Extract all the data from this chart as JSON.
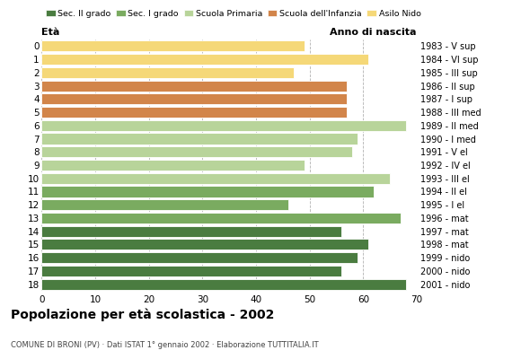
{
  "ages": [
    18,
    17,
    16,
    15,
    14,
    13,
    12,
    11,
    10,
    9,
    8,
    7,
    6,
    5,
    4,
    3,
    2,
    1,
    0
  ],
  "values": [
    68,
    56,
    59,
    61,
    56,
    67,
    46,
    62,
    65,
    49,
    58,
    59,
    68,
    57,
    57,
    57,
    47,
    61,
    49
  ],
  "right_labels": [
    "1983 - V sup",
    "1984 - VI sup",
    "1985 - III sup",
    "1986 - II sup",
    "1987 - I sup",
    "1988 - III med",
    "1989 - II med",
    "1990 - I med",
    "1991 - V el",
    "1992 - IV el",
    "1993 - III el",
    "1994 - II el",
    "1995 - I el",
    "1996 - mat",
    "1997 - mat",
    "1998 - mat",
    "1999 - nido",
    "2000 - nido",
    "2001 - nido"
  ],
  "colors": [
    "#4a7c40",
    "#4a7c40",
    "#4a7c40",
    "#4a7c40",
    "#4a7c40",
    "#7aab60",
    "#7aab60",
    "#7aab60",
    "#b8d49a",
    "#b8d49a",
    "#b8d49a",
    "#b8d49a",
    "#b8d49a",
    "#d2854a",
    "#d2854a",
    "#d2854a",
    "#f5d878",
    "#f5d878",
    "#f5d878"
  ],
  "legend_labels": [
    "Sec. II grado",
    "Sec. I grado",
    "Scuola Primaria",
    "Scuola dell'Infanzia",
    "Asilo Nido"
  ],
  "legend_colors": [
    "#4a7c40",
    "#7aab60",
    "#b8d49a",
    "#d2854a",
    "#f5d878"
  ],
  "title": "Popolazione per età scolastica - 2002",
  "subtitle": "COMUNE DI BRONI (PV) · Dati ISTAT 1° gennaio 2002 · Elaborazione TUTTITALIA.IT",
  "xlabel_eta": "Età",
  "xlabel_anno": "Anno di nascita",
  "xlim": [
    0,
    70
  ],
  "xticks": [
    0,
    10,
    20,
    30,
    40,
    50,
    60,
    70
  ],
  "bar_height": 0.82,
  "figsize": [
    5.8,
    4.0
  ],
  "dpi": 100
}
